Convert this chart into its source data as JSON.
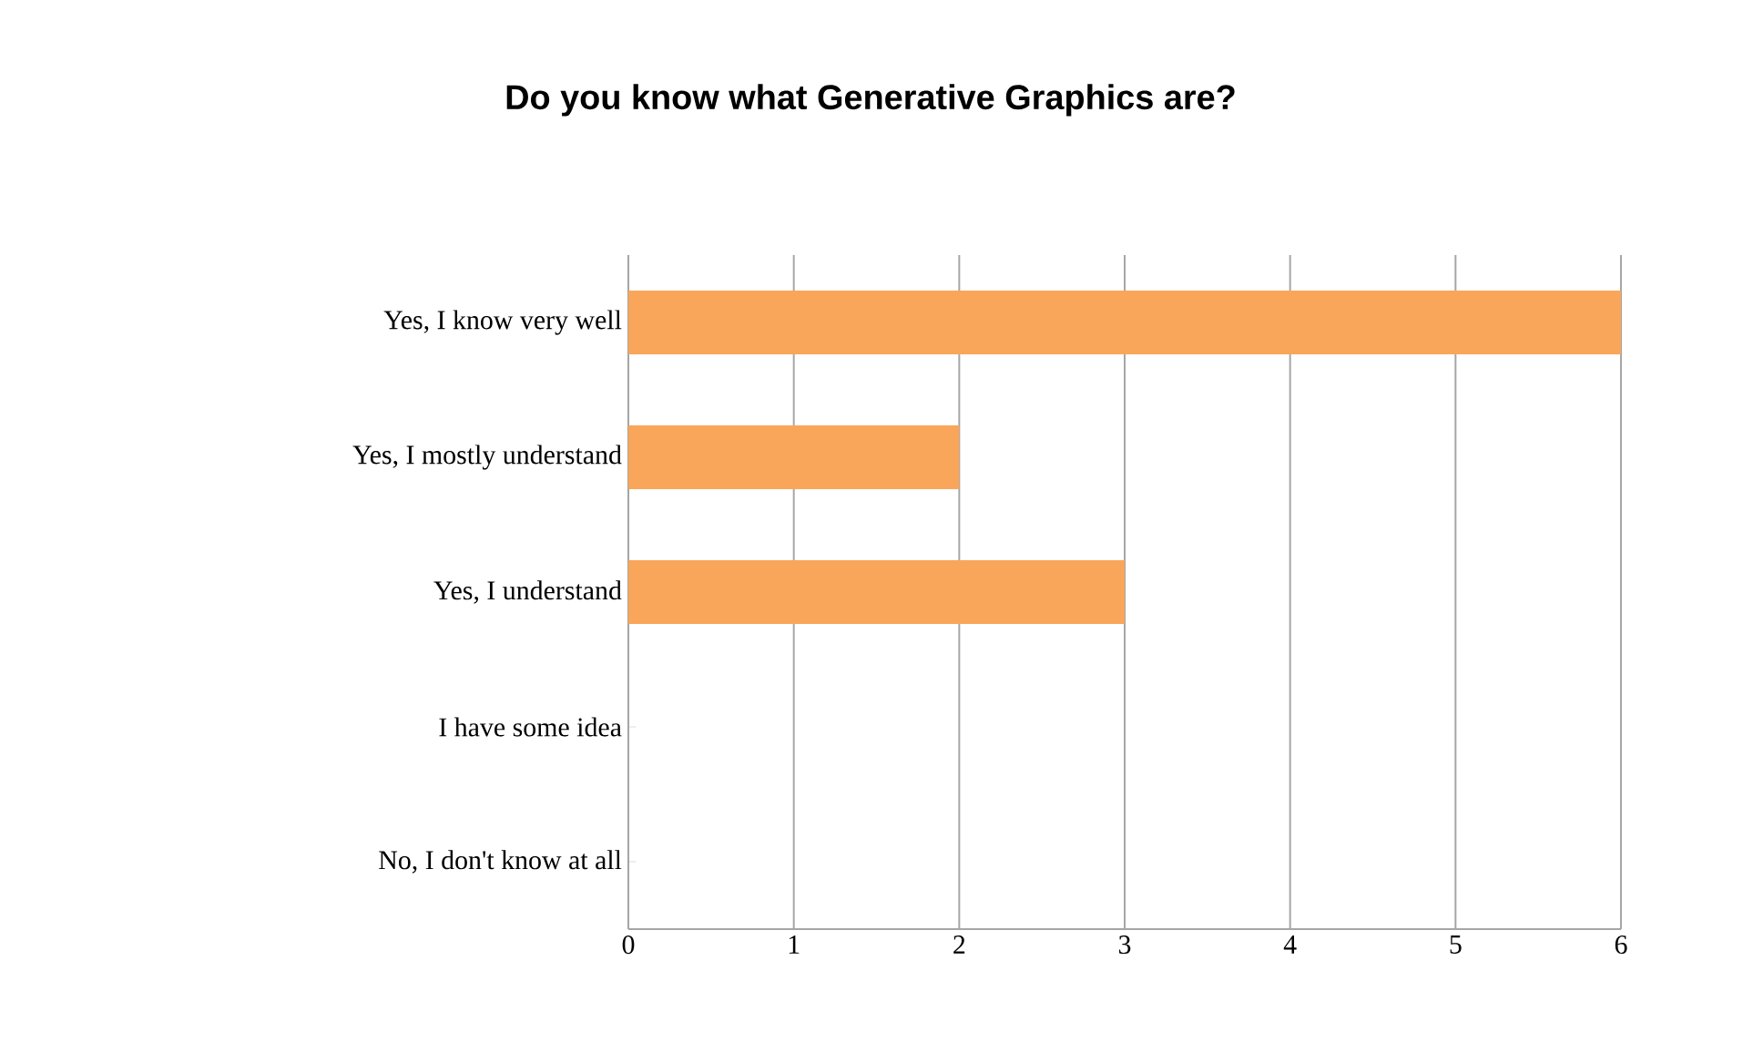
{
  "chart_data": {
    "type": "bar",
    "orientation": "horizontal",
    "title": "Do you know what Generative Graphics are?",
    "categories": [
      "Yes, I know very well",
      "Yes, I mostly understand",
      "Yes, I understand",
      "I have some idea",
      "No, I don't know at all"
    ],
    "values": [
      6,
      2,
      3,
      0,
      0
    ],
    "color": "#f9a65a",
    "xlim": [
      0,
      6
    ],
    "xticks": [
      0,
      1,
      2,
      3,
      4,
      5,
      6
    ],
    "grid": "x"
  }
}
